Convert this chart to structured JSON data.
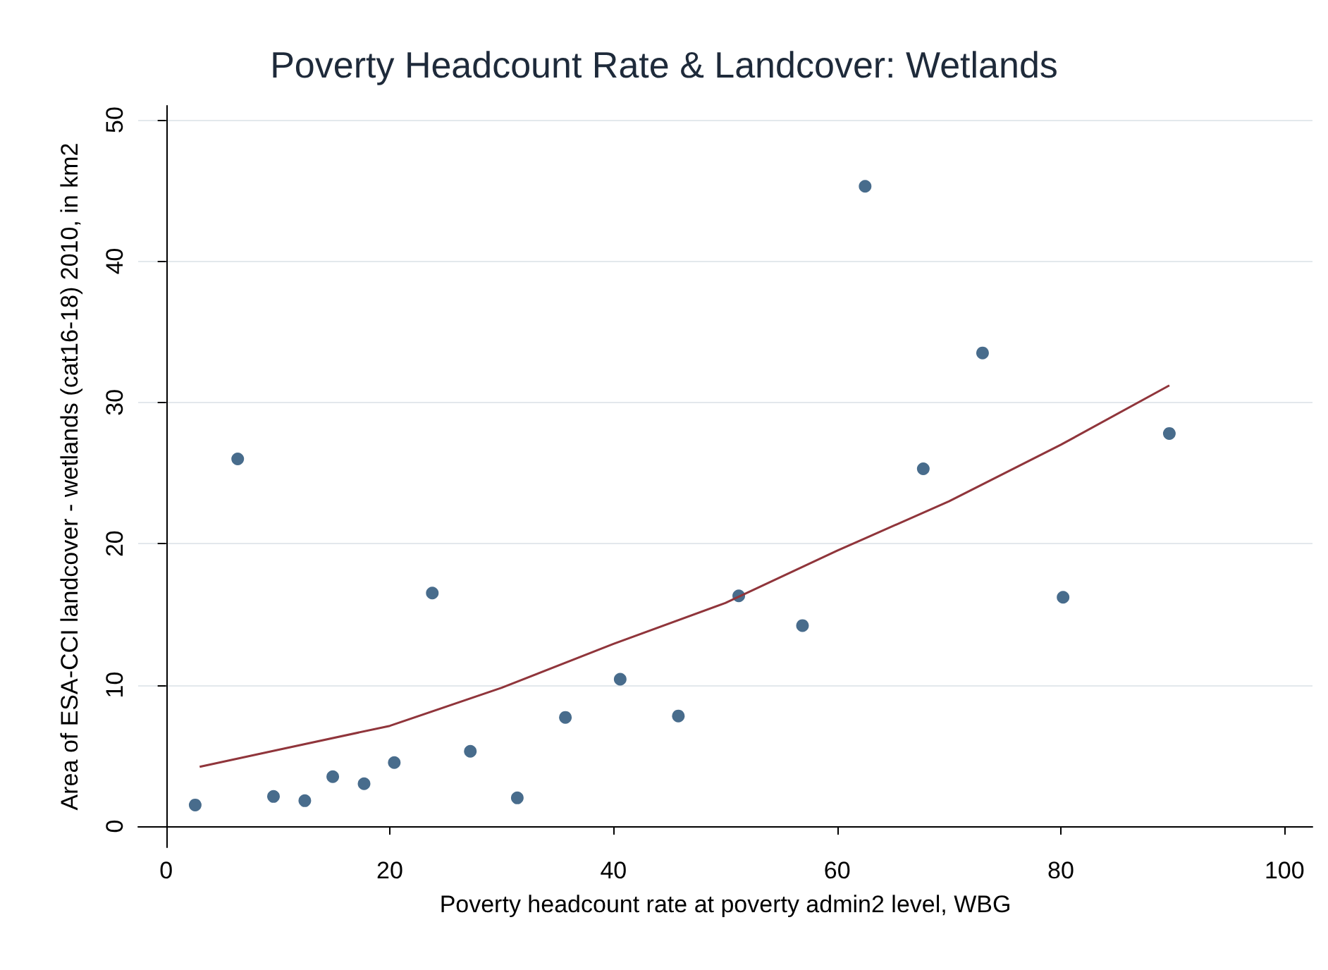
{
  "chart_data": {
    "type": "scatter",
    "title": "Poverty Headcount Rate & Landcover: Wetlands",
    "xlabel": "Poverty headcount rate at poverty admin2 level, WBG",
    "ylabel": "Area of ESA-CCI landcover - wetlands (cat16-18) 2010, in km2",
    "xlim": [
      -2.5,
      102.5
    ],
    "xticks": [
      0,
      20,
      40,
      60,
      80,
      100
    ],
    "ylim": [
      -1.5,
      51
    ],
    "yticks": [
      0,
      10,
      20,
      30,
      40,
      50
    ],
    "grid": "y",
    "marker": "circle",
    "series": [
      {
        "color": "#1a476f",
        "x": [
          2.6,
          6.4,
          9.6,
          12.4,
          14.9,
          17.7,
          20.4,
          23.8,
          27.2,
          31.4,
          35.7,
          40.6,
          45.8,
          51.2,
          56.9,
          62.5,
          67.7,
          73.0,
          80.2,
          89.7
        ],
        "values": [
          1.5,
          26.0,
          2.1,
          1.8,
          3.5,
          3.0,
          4.5,
          16.5,
          5.3,
          2.0,
          7.7,
          10.4,
          7.8,
          16.3,
          14.2,
          45.3,
          25.3,
          33.5,
          16.2,
          27.8
        ]
      },
      {
        "type": "line",
        "color": "#90353b",
        "marker": "none",
        "line_style": "solid",
        "x": [
          3,
          10,
          20,
          30,
          40,
          50,
          60,
          70,
          80,
          89.7
        ],
        "values": [
          4.2,
          5.4,
          7.1,
          9.8,
          12.9,
          15.8,
          19.5,
          23.0,
          27.0,
          31.2
        ]
      }
    ]
  }
}
